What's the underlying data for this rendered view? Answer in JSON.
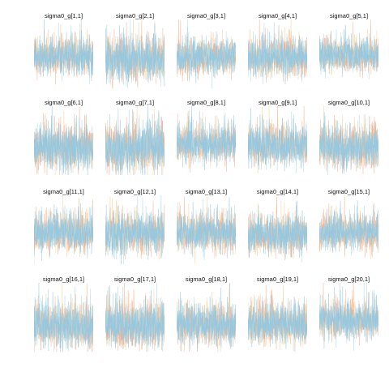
{
  "chart_data": {
    "type": "line",
    "layout": "facet-grid",
    "rows": 4,
    "cols": 5,
    "grid": false,
    "legend": "none",
    "chains": [
      {
        "color": "#f9c98b"
      },
      {
        "color": "#f4a582"
      },
      {
        "color": "#abd9e9"
      },
      {
        "color": "#92c5de"
      }
    ],
    "panels": [
      {
        "title": "sigma0_g[1,1]",
        "ylim": [
          0,
          1
        ],
        "center": 0.45,
        "spread": 0.22
      },
      {
        "title": "sigma0_g[2,1]",
        "ylim": [
          0,
          1
        ],
        "center": 0.42,
        "spread": 0.28
      },
      {
        "title": "sigma0_g[3,1]",
        "ylim": [
          0,
          1
        ],
        "center": 0.45,
        "spread": 0.22
      },
      {
        "title": "sigma0_g[4,1]",
        "ylim": [
          0,
          1
        ],
        "center": 0.45,
        "spread": 0.24
      },
      {
        "title": "sigma0_g[5,1]",
        "ylim": [
          0,
          1
        ],
        "center": 0.48,
        "spread": 0.2
      },
      {
        "title": "sigma0_g[6,1]",
        "ylim": [
          0,
          1
        ],
        "center": 0.4,
        "spread": 0.28
      },
      {
        "title": "sigma0_g[7,1]",
        "ylim": [
          0,
          1
        ],
        "center": 0.38,
        "spread": 0.3
      },
      {
        "title": "sigma0_g[8,1]",
        "ylim": [
          0,
          1
        ],
        "center": 0.45,
        "spread": 0.22
      },
      {
        "title": "sigma0_g[9,1]",
        "ylim": [
          0,
          1
        ],
        "center": 0.42,
        "spread": 0.24
      },
      {
        "title": "sigma0_g[10,1]",
        "ylim": [
          0,
          1
        ],
        "center": 0.4,
        "spread": 0.26
      },
      {
        "title": "sigma0_g[11,1]",
        "ylim": [
          0,
          1
        ],
        "center": 0.45,
        "spread": 0.24
      },
      {
        "title": "sigma0_g[12,1]",
        "ylim": [
          0,
          1
        ],
        "center": 0.45,
        "spread": 0.26
      },
      {
        "title": "sigma0_g[13,1]",
        "ylim": [
          0,
          1
        ],
        "center": 0.45,
        "spread": 0.24
      },
      {
        "title": "sigma0_g[14,1]",
        "ylim": [
          0,
          1
        ],
        "center": 0.42,
        "spread": 0.24
      },
      {
        "title": "sigma0_g[15,1]",
        "ylim": [
          0,
          1
        ],
        "center": 0.45,
        "spread": 0.22
      },
      {
        "title": "sigma0_g[16,1]",
        "ylim": [
          0,
          1
        ],
        "center": 0.38,
        "spread": 0.28
      },
      {
        "title": "sigma0_g[17,1]",
        "ylim": [
          0,
          1
        ],
        "center": 0.38,
        "spread": 0.28
      },
      {
        "title": "sigma0_g[18,1]",
        "ylim": [
          0,
          1
        ],
        "center": 0.4,
        "spread": 0.26
      },
      {
        "title": "sigma0_g[19,1]",
        "ylim": [
          0,
          1
        ],
        "center": 0.4,
        "spread": 0.26
      },
      {
        "title": "sigma0_g[20,1]",
        "ylim": [
          0,
          1
        ],
        "center": 0.45,
        "spread": 0.22
      }
    ]
  }
}
